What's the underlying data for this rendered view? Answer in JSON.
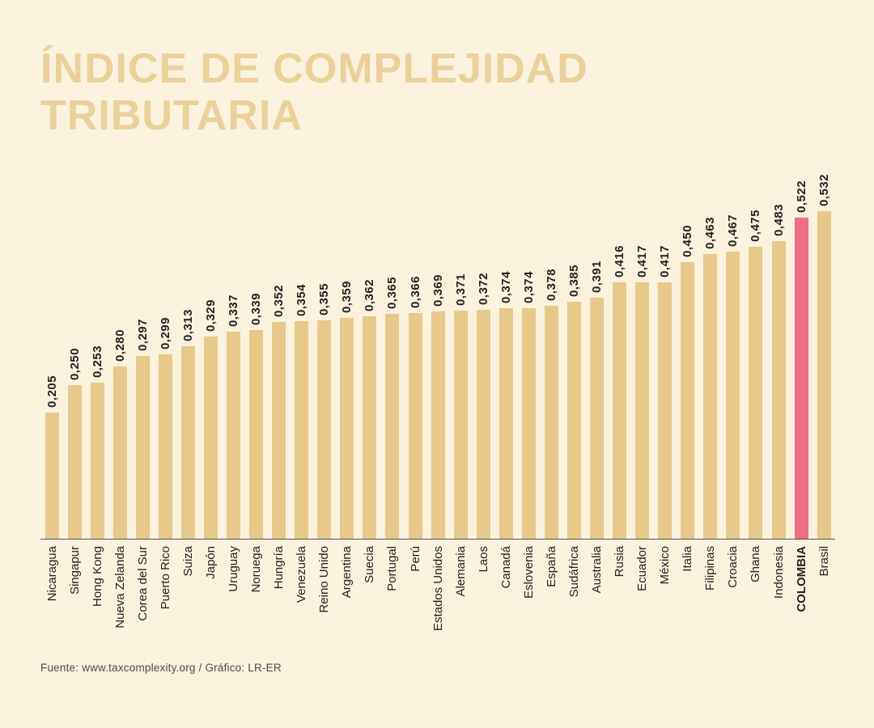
{
  "page": {
    "title": "ÍNDICE DE COMPLEJIDAD TRIBUTARIA",
    "source": "Fuente: www.taxcomplexity.org / Gráfico: LR-ER"
  },
  "colors": {
    "background": "#fbf2de",
    "title_text": "#ead09a",
    "bar": "#e6c98b",
    "highlight_bar": "#ed6d84",
    "label_text": "#231f20",
    "axis_line": "#545456",
    "footer_text": "#4c4c4e"
  },
  "chart_data": {
    "type": "bar",
    "title": "ÍNDICE DE COMPLEJIDAD TRIBUTARIA",
    "xlabel": "",
    "ylabel": "",
    "ylim": [
      0,
      0.55
    ],
    "grid": false,
    "legend": false,
    "value_label_style": "rotated-90-ccw, comma as decimal separator, bold, above bar",
    "category_label_style": "rotated-90-ccw below axis",
    "bar_color": "#e6c98b",
    "highlight_category": "COLOMBIA",
    "highlight_color": "#ed6d84",
    "categories": [
      "Nicaragua",
      "Singapur",
      "Hong Kong",
      "Nueva Zelanda",
      "Corea del Sur",
      "Puerto Rico",
      "Suiza",
      "Japón",
      "Uruguay",
      "Noruega",
      "Hungría",
      "Venezuela",
      "Reino Unido",
      "Argentina",
      "Suecia",
      "Portugal",
      "Perú",
      "Estados Unidos",
      "Alemania",
      "Laos",
      "Canadá",
      "Eslovenia",
      "España",
      "Sudáfrica",
      "Australia",
      "Rusia",
      "Ecuador",
      "México",
      "Italia",
      "Filipinas",
      "Croacia",
      "Ghana",
      "Indonesia",
      "COLOMBIA",
      "Brasil"
    ],
    "values": [
      0.205,
      0.25,
      0.253,
      0.28,
      0.297,
      0.299,
      0.313,
      0.329,
      0.337,
      0.339,
      0.352,
      0.354,
      0.355,
      0.359,
      0.362,
      0.365,
      0.366,
      0.369,
      0.371,
      0.372,
      0.374,
      0.374,
      0.378,
      0.385,
      0.391,
      0.416,
      0.417,
      0.417,
      0.45,
      0.463,
      0.467,
      0.475,
      0.483,
      0.522,
      0.532
    ],
    "value_labels": [
      "0,205",
      "0,250",
      "0,253",
      "0,280",
      "0,297",
      "0,299",
      "0,313",
      "0,329",
      "0,337",
      "0,339",
      "0,352",
      "0,354",
      "0,355",
      "0,359",
      "0,362",
      "0,365",
      "0,366",
      "0,369",
      "0,371",
      "0,372",
      "0,374",
      "0,374",
      "0,378",
      "0,385",
      "0,391",
      "0,416",
      "0,417",
      "0,417",
      "0,450",
      "0,463",
      "0,467",
      "0,475",
      "0,483",
      "0,522",
      "0,532"
    ]
  }
}
